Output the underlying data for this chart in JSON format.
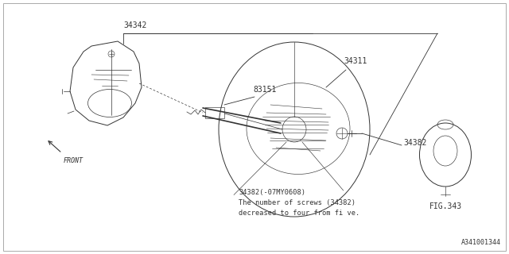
{
  "bg_color": "#ffffff",
  "lc": "#333333",
  "lw_main": 0.7,
  "lw_thin": 0.45,
  "fs_label": 7.0,
  "fs_note": 6.2,
  "fs_ref": 6.0,
  "note_lines": [
    "34382(-07MY0608)",
    "The number of screws (34382)",
    "decreased to four from fi ve."
  ],
  "ref": "A341001344",
  "fig343_label": "FIG.343"
}
